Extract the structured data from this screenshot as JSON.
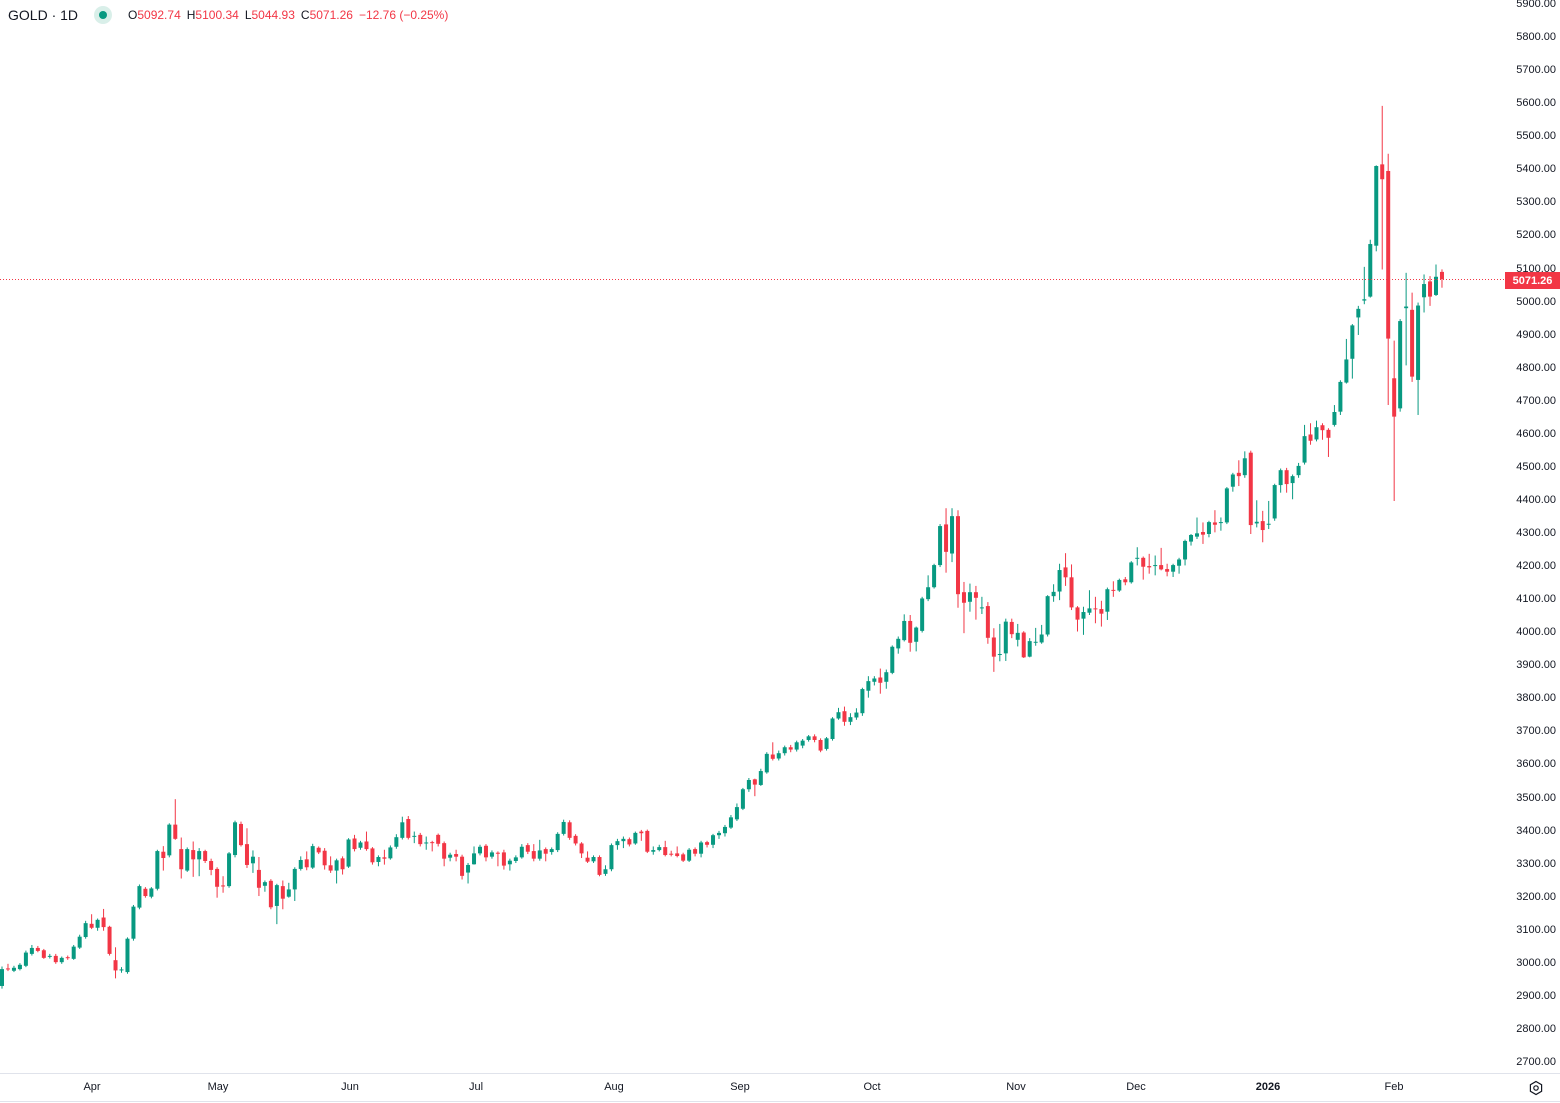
{
  "header": {
    "symbol": "GOLD · 1D",
    "status_icon": "market-open-dot-icon",
    "open_key": "O",
    "open": "5092.74",
    "high_key": "H",
    "high": "5100.34",
    "low_key": "L",
    "low": "5044.93",
    "close_key": "C",
    "close": "5071.26",
    "change": "−12.76 (−0.25%)"
  },
  "last_price_label": "5071.26",
  "settings_icon": "gear-icon",
  "colors": {
    "up": "#089981",
    "down": "#f23645",
    "last_price_line": "#f23645"
  },
  "chart_data": {
    "type": "candlestick",
    "title": "GOLD · 1D",
    "y_axis": {
      "position": "right",
      "ylim": [
        2700,
        5900
      ],
      "ticks": [
        "5900.00",
        "5800.00",
        "5700.00",
        "5600.00",
        "5500.00",
        "5400.00",
        "5300.00",
        "5200.00",
        "5100.00",
        "5000.00",
        "4900.00",
        "4800.00",
        "4700.00",
        "4600.00",
        "4500.00",
        "4400.00",
        "4300.00",
        "4200.00",
        "4100.00",
        "4000.00",
        "3900.00",
        "3800.00",
        "3700.00",
        "3600.00",
        "3500.00",
        "3400.00",
        "3300.00",
        "3200.00",
        "3100.00",
        "3000.00",
        "2900.00",
        "2800.00",
        "2700.00"
      ]
    },
    "x_axis": {
      "ticks": [
        "Apr",
        "May",
        "Jun",
        "Jul",
        "Aug",
        "Sep",
        "Oct",
        "Nov",
        "Dec",
        "2026",
        "Feb"
      ]
    },
    "grid": false,
    "last_price": 5071.26,
    "ohlc_format": [
      "open",
      "high",
      "low",
      "close"
    ],
    "candles": [
      [
        2933,
        2992,
        2925,
        2984
      ],
      [
        2986,
        3000,
        2978,
        2983
      ],
      [
        2979,
        2994,
        2975,
        2988
      ],
      [
        2984,
        3002,
        2980,
        2997
      ],
      [
        2994,
        3040,
        2990,
        3034
      ],
      [
        3030,
        3057,
        3025,
        3048
      ],
      [
        3048,
        3054,
        3035,
        3039
      ],
      [
        3041,
        3045,
        3015,
        3018
      ],
      [
        3022,
        3030,
        3016,
        3024
      ],
      [
        3024,
        3030,
        3000,
        3005
      ],
      [
        3005,
        3022,
        3000,
        3018
      ],
      [
        3020,
        3025,
        3012,
        3018
      ],
      [
        3015,
        3057,
        3012,
        3052
      ],
      [
        3049,
        3088,
        3045,
        3082
      ],
      [
        3081,
        3130,
        3076,
        3123
      ],
      [
        3121,
        3150,
        3105,
        3109
      ],
      [
        3109,
        3137,
        3100,
        3133
      ],
      [
        3140,
        3166,
        3100,
        3111
      ],
      [
        3112,
        3115,
        3025,
        3030
      ],
      [
        3011,
        3050,
        2956,
        2980
      ],
      [
        2980,
        2990,
        2973,
        2983
      ],
      [
        2975,
        3080,
        2970,
        3076
      ],
      [
        3076,
        3178,
        3070,
        3173
      ],
      [
        3170,
        3240,
        3165,
        3235
      ],
      [
        3227,
        3232,
        3200,
        3205
      ],
      [
        3203,
        3232,
        3198,
        3228
      ],
      [
        3227,
        3345,
        3222,
        3341
      ],
      [
        3339,
        3356,
        3282,
        3320
      ],
      [
        3328,
        3425,
        3322,
        3421
      ],
      [
        3421,
        3498,
        3375,
        3378
      ],
      [
        3347,
        3382,
        3258,
        3286
      ],
      [
        3282,
        3352,
        3278,
        3347
      ],
      [
        3344,
        3370,
        3263,
        3316
      ],
      [
        3316,
        3350,
        3265,
        3341
      ],
      [
        3341,
        3345,
        3305,
        3311
      ],
      [
        3311,
        3318,
        3268,
        3284
      ],
      [
        3287,
        3292,
        3200,
        3233
      ],
      [
        3237,
        3265,
        3215,
        3235
      ],
      [
        3235,
        3338,
        3230,
        3334
      ],
      [
        3329,
        3433,
        3322,
        3428
      ],
      [
        3423,
        3430,
        3355,
        3359
      ],
      [
        3362,
        3410,
        3290,
        3299
      ],
      [
        3304,
        3343,
        3275,
        3324
      ],
      [
        3284,
        3323,
        3205,
        3230
      ],
      [
        3236,
        3252,
        3218,
        3247
      ],
      [
        3251,
        3256,
        3165,
        3171
      ],
      [
        3175,
        3242,
        3120,
        3238
      ],
      [
        3235,
        3252,
        3165,
        3197
      ],
      [
        3203,
        3245,
        3200,
        3225
      ],
      [
        3225,
        3292,
        3190,
        3287
      ],
      [
        3287,
        3325,
        3282,
        3314
      ],
      [
        3316,
        3340,
        3283,
        3292
      ],
      [
        3291,
        3363,
        3287,
        3356
      ],
      [
        3351,
        3355,
        3332,
        3337
      ],
      [
        3342,
        3350,
        3285,
        3298
      ],
      [
        3298,
        3325,
        3275,
        3282
      ],
      [
        3282,
        3318,
        3243,
        3313
      ],
      [
        3319,
        3325,
        3270,
        3286
      ],
      [
        3294,
        3380,
        3290,
        3376
      ],
      [
        3379,
        3390,
        3340,
        3347
      ],
      [
        3351,
        3372,
        3345,
        3367
      ],
      [
        3370,
        3400,
        3342,
        3347
      ],
      [
        3349,
        3353,
        3300,
        3307
      ],
      [
        3308,
        3328,
        3295,
        3323
      ],
      [
        3322,
        3345,
        3300,
        3318
      ],
      [
        3319,
        3358,
        3315,
        3352
      ],
      [
        3354,
        3392,
        3348,
        3383
      ],
      [
        3381,
        3445,
        3376,
        3428
      ],
      [
        3438,
        3447,
        3376,
        3381
      ],
      [
        3385,
        3400,
        3365,
        3387
      ],
      [
        3390,
        3396,
        3355,
        3362
      ],
      [
        3367,
        3385,
        3345,
        3367
      ],
      [
        3368,
        3372,
        3340,
        3365
      ],
      [
        3390,
        3394,
        3355,
        3363
      ],
      [
        3365,
        3370,
        3295,
        3318
      ],
      [
        3321,
        3336,
        3310,
        3330
      ],
      [
        3332,
        3345,
        3310,
        3324
      ],
      [
        3324,
        3330,
        3255,
        3266
      ],
      [
        3276,
        3305,
        3243,
        3299
      ],
      [
        3301,
        3355,
        3300,
        3334
      ],
      [
        3334,
        3360,
        3328,
        3354
      ],
      [
        3357,
        3362,
        3310,
        3322
      ],
      [
        3324,
        3343,
        3318,
        3337
      ],
      [
        3336,
        3340,
        3295,
        3334
      ],
      [
        3337,
        3345,
        3285,
        3297
      ],
      [
        3301,
        3318,
        3282,
        3312
      ],
      [
        3311,
        3328,
        3305,
        3322
      ],
      [
        3322,
        3362,
        3318,
        3354
      ],
      [
        3359,
        3365,
        3332,
        3339
      ],
      [
        3341,
        3362,
        3310,
        3318
      ],
      [
        3318,
        3375,
        3312,
        3343
      ],
      [
        3347,
        3352,
        3310,
        3333
      ],
      [
        3338,
        3352,
        3330,
        3347
      ],
      [
        3344,
        3398,
        3338,
        3393
      ],
      [
        3393,
        3436,
        3388,
        3429
      ],
      [
        3428,
        3434,
        3375,
        3381
      ],
      [
        3387,
        3392,
        3358,
        3364
      ],
      [
        3364,
        3368,
        3320,
        3334
      ],
      [
        3321,
        3340,
        3305,
        3309
      ],
      [
        3310,
        3328,
        3305,
        3323
      ],
      [
        3323,
        3328,
        3265,
        3269
      ],
      [
        3272,
        3298,
        3266,
        3286
      ],
      [
        3286,
        3364,
        3280,
        3359
      ],
      [
        3359,
        3378,
        3345,
        3371
      ],
      [
        3371,
        3385,
        3350,
        3378
      ],
      [
        3377,
        3382,
        3355,
        3361
      ],
      [
        3364,
        3400,
        3360,
        3396
      ],
      [
        3400,
        3405,
        3372,
        3395
      ],
      [
        3402,
        3406,
        3335,
        3339
      ],
      [
        3339,
        3355,
        3330,
        3344
      ],
      [
        3344,
        3360,
        3340,
        3353
      ],
      [
        3353,
        3372,
        3325,
        3329
      ],
      [
        3333,
        3342,
        3325,
        3331
      ],
      [
        3334,
        3355,
        3322,
        3326
      ],
      [
        3331,
        3336,
        3308,
        3312
      ],
      [
        3312,
        3350,
        3308,
        3345
      ],
      [
        3347,
        3352,
        3325,
        3333
      ],
      [
        3333,
        3372,
        3322,
        3367
      ],
      [
        3368,
        3372,
        3352,
        3360
      ],
      [
        3360,
        3393,
        3350,
        3389
      ],
      [
        3389,
        3402,
        3378,
        3396
      ],
      [
        3395,
        3420,
        3385,
        3414
      ],
      [
        3412,
        3450,
        3408,
        3443
      ],
      [
        3437,
        3485,
        3432,
        3474
      ],
      [
        3469,
        3532,
        3465,
        3528
      ],
      [
        3528,
        3562,
        3520,
        3556
      ],
      [
        3558,
        3560,
        3507,
        3542
      ],
      [
        3541,
        3590,
        3538,
        3583
      ],
      [
        3579,
        3640,
        3575,
        3635
      ],
      [
        3633,
        3670,
        3615,
        3620
      ],
      [
        3621,
        3645,
        3615,
        3637
      ],
      [
        3637,
        3660,
        3630,
        3655
      ],
      [
        3655,
        3662,
        3640,
        3648
      ],
      [
        3648,
        3675,
        3642,
        3670
      ],
      [
        3660,
        3680,
        3652,
        3675
      ],
      [
        3677,
        3692,
        3672,
        3688
      ],
      [
        3688,
        3694,
        3670,
        3677
      ],
      [
        3677,
        3682,
        3640,
        3645
      ],
      [
        3650,
        3686,
        3645,
        3682
      ],
      [
        3680,
        3746,
        3675,
        3742
      ],
      [
        3742,
        3774,
        3738,
        3761
      ],
      [
        3764,
        3778,
        3720,
        3732
      ],
      [
        3732,
        3758,
        3722,
        3746
      ],
      [
        3745,
        3773,
        3738,
        3760
      ],
      [
        3758,
        3835,
        3750,
        3831
      ],
      [
        3826,
        3870,
        3805,
        3855
      ],
      [
        3853,
        3870,
        3842,
        3863
      ],
      [
        3866,
        3893,
        3817,
        3850
      ],
      [
        3853,
        3890,
        3832,
        3882
      ],
      [
        3880,
        3963,
        3876,
        3959
      ],
      [
        3954,
        3990,
        3938,
        3983
      ],
      [
        3979,
        4057,
        3975,
        4037
      ],
      [
        4037,
        4055,
        3944,
        3971
      ],
      [
        3974,
        4020,
        3945,
        4017
      ],
      [
        4007,
        4110,
        4002,
        4105
      ],
      [
        4103,
        4175,
        4097,
        4139
      ],
      [
        4139,
        4210,
        4135,
        4206
      ],
      [
        4206,
        4330,
        4200,
        4324
      ],
      [
        4329,
        4378,
        4183,
        4246
      ],
      [
        4241,
        4378,
        4215,
        4354
      ],
      [
        4354,
        4372,
        4077,
        4118
      ],
      [
        4124,
        4155,
        4000,
        4092
      ],
      [
        4095,
        4150,
        4065,
        4124
      ],
      [
        4124,
        4143,
        4041,
        4107
      ],
      [
        4075,
        4110,
        4058,
        4078
      ],
      [
        4082,
        4094,
        3968,
        3986
      ],
      [
        3987,
        4015,
        3883,
        3929
      ],
      [
        3934,
        4028,
        3915,
        3937
      ],
      [
        3939,
        4044,
        3916,
        4035
      ],
      [
        4034,
        4044,
        3985,
        3997
      ],
      [
        3980,
        4028,
        3960,
        4001
      ],
      [
        4002,
        4006,
        3925,
        3927
      ],
      [
        3929,
        3985,
        3927,
        3976
      ],
      [
        3972,
        4016,
        3962,
        3974
      ],
      [
        3972,
        4025,
        3968,
        3996
      ],
      [
        3996,
        4115,
        3990,
        4112
      ],
      [
        4112,
        4148,
        4095,
        4125
      ],
      [
        4126,
        4210,
        4100,
        4191
      ],
      [
        4199,
        4242,
        4143,
        4169
      ],
      [
        4169,
        4208,
        4070,
        4078
      ],
      [
        4078,
        4082,
        4005,
        4041
      ],
      [
        4044,
        4080,
        3995,
        4064
      ],
      [
        4062,
        4130,
        4055,
        4075
      ],
      [
        4075,
        4110,
        4030,
        4072
      ],
      [
        4073,
        4098,
        4020,
        4059
      ],
      [
        4065,
        4138,
        4040,
        4133
      ],
      [
        4131,
        4157,
        4110,
        4130
      ],
      [
        4129,
        4165,
        4125,
        4161
      ],
      [
        4163,
        4170,
        4145,
        4154
      ],
      [
        4154,
        4218,
        4150,
        4214
      ],
      [
        4227,
        4260,
        4205,
        4228
      ],
      [
        4228,
        4232,
        4162,
        4201
      ],
      [
        4203,
        4240,
        4180,
        4199
      ],
      [
        4204,
        4235,
        4175,
        4206
      ],
      [
        4206,
        4258,
        4190,
        4193
      ],
      [
        4194,
        4210,
        4172,
        4186
      ],
      [
        4186,
        4210,
        4170,
        4206
      ],
      [
        4204,
        4228,
        4180,
        4223
      ],
      [
        4223,
        4283,
        4205,
        4279
      ],
      [
        4277,
        4300,
        4265,
        4297
      ],
      [
        4292,
        4350,
        4285,
        4302
      ],
      [
        4306,
        4335,
        4270,
        4298
      ],
      [
        4300,
        4340,
        4290,
        4336
      ],
      [
        4335,
        4372,
        4305,
        4328
      ],
      [
        4334,
        4350,
        4310,
        4336
      ],
      [
        4335,
        4442,
        4330,
        4438
      ],
      [
        4443,
        4485,
        4428,
        4480
      ],
      [
        4485,
        4523,
        4445,
        4475
      ],
      [
        4478,
        4550,
        4470,
        4529
      ],
      [
        4546,
        4552,
        4300,
        4327
      ],
      [
        4332,
        4402,
        4320,
        4337
      ],
      [
        4339,
        4370,
        4275,
        4312
      ],
      [
        4329,
        4400,
        4315,
        4331
      ],
      [
        4347,
        4452,
        4340,
        4448
      ],
      [
        4448,
        4498,
        4425,
        4493
      ],
      [
        4493,
        4500,
        4425,
        4451
      ],
      [
        4454,
        4480,
        4405,
        4475
      ],
      [
        4478,
        4515,
        4470,
        4506
      ],
      [
        4516,
        4630,
        4510,
        4596
      ],
      [
        4601,
        4635,
        4570,
        4582
      ],
      [
        4586,
        4643,
        4580,
        4623
      ],
      [
        4629,
        4635,
        4585,
        4614
      ],
      [
        4615,
        4620,
        4533,
        4591
      ],
      [
        4630,
        4690,
        4625,
        4669
      ],
      [
        4670,
        4765,
        4660,
        4760
      ],
      [
        4758,
        4890,
        4755,
        4828
      ],
      [
        4830,
        4935,
        4770,
        4931
      ],
      [
        4955,
        4990,
        4902,
        4981
      ],
      [
        5006,
        5108,
        4995,
        5010
      ],
      [
        5018,
        5190,
        5015,
        5177
      ],
      [
        5172,
        5415,
        5155,
        5413
      ],
      [
        5418,
        5595,
        5100,
        5373
      ],
      [
        5398,
        5450,
        4690,
        4891
      ],
      [
        4771,
        4885,
        4400,
        4655
      ],
      [
        4680,
        4950,
        4670,
        4944
      ],
      [
        4983,
        5090,
        4810,
        4988
      ],
      [
        4978,
        5030,
        4760,
        4776
      ],
      [
        4766,
        5000,
        4660,
        4991
      ],
      [
        5016,
        5085,
        4970,
        5056
      ],
      [
        5064,
        5080,
        4990,
        5018
      ],
      [
        5023,
        5115,
        5020,
        5078
      ],
      [
        5092.74,
        5100.34,
        5044.93,
        5071.26
      ]
    ]
  }
}
